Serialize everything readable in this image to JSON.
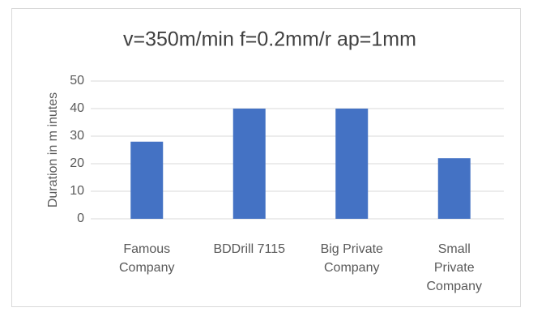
{
  "chart_data": {
    "type": "bar",
    "title": "v=350m/min f=0.2mm/r ap=1mm",
    "y_label": "Duration in m inutes",
    "categories": [
      "Famous Company",
      "BDDrill 7115",
      "Big Private Company",
      "Small Private Company"
    ],
    "values": [
      28,
      40,
      40,
      22
    ],
    "color": "#4472c4",
    "ylim": [
      0,
      50
    ],
    "yticks": [
      0,
      10,
      20,
      30,
      40,
      50
    ],
    "grid": true
  }
}
